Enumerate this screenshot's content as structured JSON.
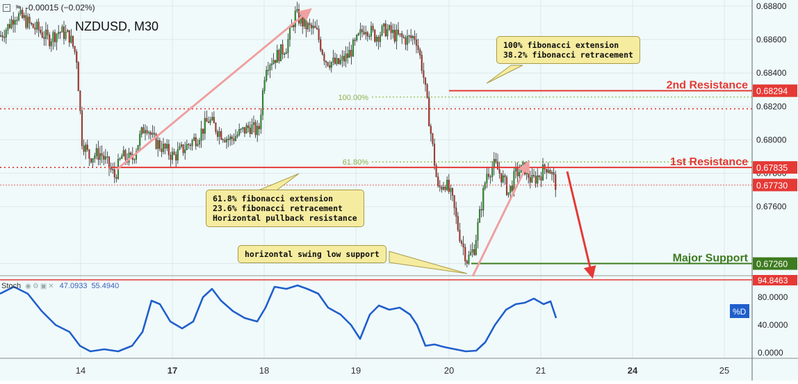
{
  "header": {
    "change": "-0.00015 (−0.02%)",
    "symbol": "NZDUSD, M30"
  },
  "annotations": {
    "top": "100% fibonacci extension\n38.2% fibonacci retracement",
    "mid": "61.8% fibonacci extension\n23.6% fibonacci retracement\nHorizontal pullback resistance",
    "low": "horizontal swing low support"
  },
  "chart_data": {
    "type": "candlestick",
    "symbol": "NZDUSD",
    "timeframe": "M30",
    "x_ticks": [
      "14",
      "17",
      "18",
      "19",
      "20",
      "21",
      "24",
      "25"
    ],
    "y_ticks": [
      0.6726,
      0.676,
      0.678,
      0.68,
      0.682,
      0.684,
      0.686,
      0.688
    ],
    "ylim": [
      0.672,
      0.6882
    ],
    "levels": [
      {
        "label": "2nd Resistance",
        "value": "0.68294",
        "color": "#e53935"
      },
      {
        "label": "1st Resistance",
        "value": "0.67835",
        "color": "#e53935"
      },
      {
        "label": "",
        "value": "0.67730",
        "color": "#e53935"
      },
      {
        "label": "Major Support",
        "value": "0.67260",
        "color": "#3d7b1f"
      }
    ],
    "fib_labels": [
      {
        "label": "100.00%",
        "value": 0.68256
      },
      {
        "label": "61.80%",
        "value": 0.67868
      }
    ],
    "price_path": [
      [
        0,
        0.6862
      ],
      [
        12,
        0.6868
      ],
      [
        22,
        0.6875
      ],
      [
        35,
        0.6872
      ],
      [
        45,
        0.6868
      ],
      [
        55,
        0.6866
      ],
      [
        70,
        0.686
      ],
      [
        85,
        0.6865
      ],
      [
        100,
        0.6862
      ],
      [
        110,
        0.685
      ],
      [
        118,
        0.68
      ],
      [
        128,
        0.679
      ],
      [
        145,
        0.6792
      ],
      [
        158,
        0.6783
      ],
      [
        165,
        0.6778
      ],
      [
        175,
        0.679
      ],
      [
        190,
        0.6788
      ],
      [
        200,
        0.68
      ],
      [
        210,
        0.681
      ],
      [
        220,
        0.68
      ],
      [
        235,
        0.6795
      ],
      [
        250,
        0.679
      ],
      [
        265,
        0.6795
      ],
      [
        285,
        0.6802
      ],
      [
        300,
        0.6812
      ],
      [
        315,
        0.6805
      ],
      [
        330,
        0.68
      ],
      [
        345,
        0.6804
      ],
      [
        360,
        0.6808
      ],
      [
        372,
        0.6804
      ],
      [
        382,
        0.6845
      ],
      [
        398,
        0.685
      ],
      [
        412,
        0.6856
      ],
      [
        425,
        0.6875
      ],
      [
        440,
        0.6868
      ],
      [
        455,
        0.6865
      ],
      [
        468,
        0.6848
      ],
      [
        485,
        0.6845
      ],
      [
        500,
        0.685
      ],
      [
        512,
        0.6858
      ],
      [
        525,
        0.6868
      ],
      [
        540,
        0.6862
      ],
      [
        555,
        0.6866
      ],
      [
        570,
        0.6862
      ],
      [
        585,
        0.686
      ],
      [
        598,
        0.6862
      ],
      [
        608,
        0.6842
      ],
      [
        618,
        0.681
      ],
      [
        630,
        0.677
      ],
      [
        640,
        0.6775
      ],
      [
        650,
        0.6765
      ],
      [
        660,
        0.6745
      ],
      [
        672,
        0.6728
      ],
      [
        682,
        0.6735
      ],
      [
        692,
        0.676
      ],
      [
        700,
        0.678
      ],
      [
        712,
        0.6785
      ],
      [
        722,
        0.6778
      ],
      [
        732,
        0.6768
      ],
      [
        742,
        0.678
      ],
      [
        755,
        0.6783
      ],
      [
        765,
        0.6775
      ],
      [
        778,
        0.678
      ],
      [
        788,
        0.6785
      ],
      [
        800,
        0.6773
      ]
    ],
    "stochastic": {
      "label": "Stoch",
      "k_value": "47.0933",
      "d_value": "55.4940",
      "d_tag": "%D",
      "upper_value": "94.8463",
      "ylim": [
        0,
        100
      ],
      "y_ticks": [
        "0.0000",
        "40.0000",
        "80.0000"
      ],
      "k_path": [
        [
          0,
          85
        ],
        [
          20,
          95
        ],
        [
          40,
          85
        ],
        [
          60,
          60
        ],
        [
          80,
          40
        ],
        [
          100,
          30
        ],
        [
          115,
          10
        ],
        [
          130,
          2
        ],
        [
          150,
          5
        ],
        [
          170,
          2
        ],
        [
          190,
          10
        ],
        [
          205,
          30
        ],
        [
          218,
          75
        ],
        [
          230,
          70
        ],
        [
          245,
          45
        ],
        [
          262,
          35
        ],
        [
          278,
          45
        ],
        [
          292,
          80
        ],
        [
          305,
          92
        ],
        [
          318,
          75
        ],
        [
          335,
          60
        ],
        [
          352,
          50
        ],
        [
          370,
          45
        ],
        [
          382,
          65
        ],
        [
          395,
          95
        ],
        [
          412,
          92
        ],
        [
          428,
          97
        ],
        [
          442,
          92
        ],
        [
          458,
          85
        ],
        [
          472,
          65
        ],
        [
          490,
          55
        ],
        [
          505,
          40
        ],
        [
          518,
          20
        ],
        [
          532,
          55
        ],
        [
          545,
          68
        ],
        [
          560,
          62
        ],
        [
          575,
          65
        ],
        [
          590,
          55
        ],
        [
          600,
          40
        ],
        [
          612,
          10
        ],
        [
          625,
          12
        ],
        [
          640,
          8
        ],
        [
          655,
          5
        ],
        [
          670,
          2
        ],
        [
          685,
          3
        ],
        [
          698,
          15
        ],
        [
          712,
          40
        ],
        [
          728,
          62
        ],
        [
          742,
          70
        ],
        [
          755,
          72
        ],
        [
          768,
          78
        ],
        [
          782,
          70
        ],
        [
          792,
          74
        ],
        [
          800,
          50
        ]
      ]
    }
  }
}
